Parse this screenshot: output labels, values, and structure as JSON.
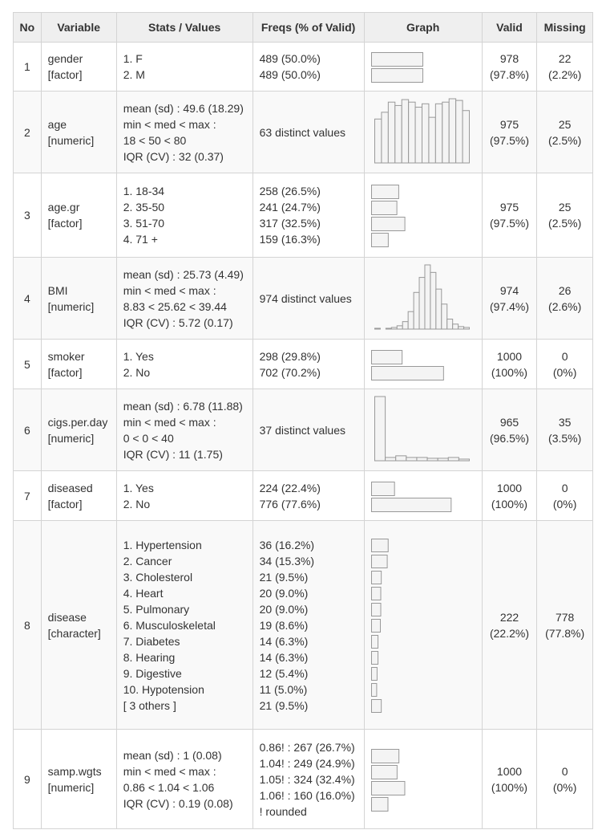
{
  "headers": [
    "No",
    "Variable",
    "Stats / Values",
    "Freqs (% of Valid)",
    "Graph",
    "Valid",
    "Missing"
  ],
  "rows": [
    {
      "no": "1",
      "var": [
        "gender",
        "[factor]"
      ],
      "stats": [
        "1. F",
        "2. M"
      ],
      "freqs": [
        "489 (50.0%)",
        "489 (50.0%)"
      ],
      "valid": [
        "978",
        "(97.8%)"
      ],
      "missing": [
        "22",
        "(2.2%)"
      ],
      "graph": {
        "type": "bars",
        "values": [
          50.0,
          50.0
        ]
      }
    },
    {
      "no": "2",
      "var": [
        "age",
        "[numeric]"
      ],
      "stats": [
        "mean (sd) : 49.6 (18.29)",
        "min < med < max :",
        "18 < 50 < 80",
        "IQR (CV) : 32 (0.37)"
      ],
      "freqs": [
        "63 distinct values"
      ],
      "valid": [
        "975",
        "(97.5%)"
      ],
      "missing": [
        "25",
        "(2.5%)"
      ],
      "graph": {
        "type": "histogram",
        "values": [
          52,
          60,
          72,
          68,
          75,
          72,
          66,
          70,
          54,
          70,
          72,
          76,
          74,
          62
        ]
      }
    },
    {
      "no": "3",
      "var": [
        "age.gr",
        "[factor]"
      ],
      "stats": [
        "1. 18-34",
        "2. 35-50",
        "3. 51-70",
        "4. 71 +"
      ],
      "freqs": [
        "258 (26.5%)",
        "241 (24.7%)",
        "317 (32.5%)",
        "159 (16.3%)"
      ],
      "valid": [
        "975",
        "(97.5%)"
      ],
      "missing": [
        "25",
        "(2.5%)"
      ],
      "graph": {
        "type": "bars",
        "values": [
          26.5,
          24.7,
          32.5,
          16.3
        ]
      }
    },
    {
      "no": "4",
      "var": [
        "BMI",
        "[numeric]"
      ],
      "stats": [
        "mean (sd) : 25.73 (4.49)",
        "min < med < max :",
        "8.83 < 25.62 < 39.44",
        "IQR (CV) : 5.72 (0.17)"
      ],
      "freqs": [
        "974 distinct values"
      ],
      "valid": [
        "974",
        "(97.4%)"
      ],
      "missing": [
        "26",
        "(2.6%)"
      ],
      "graph": {
        "type": "histogram",
        "values": [
          1,
          0,
          1,
          2,
          4,
          9,
          21,
          44,
          62,
          77,
          68,
          48,
          30,
          12,
          6,
          3,
          2
        ]
      }
    },
    {
      "no": "5",
      "var": [
        "smoker",
        "[factor]"
      ],
      "stats": [
        "1. Yes",
        "2. No"
      ],
      "freqs": [
        "298 (29.8%)",
        "702 (70.2%)"
      ],
      "valid": [
        "1000",
        "(100%)"
      ],
      "missing": [
        "0",
        "(0%)"
      ],
      "graph": {
        "type": "bars",
        "values": [
          29.8,
          70.2
        ]
      }
    },
    {
      "no": "6",
      "var": [
        "cigs.per.day",
        "[numeric]"
      ],
      "stats": [
        "mean (sd) : 6.78 (11.88)",
        "min < med < max :",
        "0 < 0 < 40",
        "IQR (CV) : 11 (1.75)"
      ],
      "freqs": [
        "37 distinct values"
      ],
      "valid": [
        "965",
        "(96.5%)"
      ],
      "missing": [
        "35",
        "(3.5%)"
      ],
      "graph": {
        "type": "histogram",
        "values": [
          78,
          4,
          6,
          4,
          4,
          3,
          3,
          4,
          2
        ]
      }
    },
    {
      "no": "7",
      "var": [
        "diseased",
        "[factor]"
      ],
      "stats": [
        "1. Yes",
        "2. No"
      ],
      "freqs": [
        "224 (22.4%)",
        "776 (77.6%)"
      ],
      "valid": [
        "1000",
        "(100%)"
      ],
      "missing": [
        "0",
        "(0%)"
      ],
      "graph": {
        "type": "bars",
        "values": [
          22.4,
          77.6
        ]
      }
    },
    {
      "no": "8",
      "var": [
        "disease",
        "[character]"
      ],
      "stats": [
        "1. Hypertension",
        "2. Cancer",
        "3. Cholesterol",
        "4. Heart",
        "5. Pulmonary",
        "6. Musculoskeletal",
        "7. Diabetes",
        "8. Hearing",
        "9. Digestive",
        "10. Hypotension",
        "[ 3 others ]"
      ],
      "freqs": [
        "36 (16.2%)",
        "34 (15.3%)",
        "21 (9.5%)",
        "20 (9.0%)",
        "20 (9.0%)",
        "19 (8.6%)",
        "14 (6.3%)",
        "14 (6.3%)",
        "12 (5.4%)",
        "11 (5.0%)",
        "21 (9.5%)"
      ],
      "valid": [
        "222",
        "(22.2%)"
      ],
      "missing": [
        "778",
        "(77.8%)"
      ],
      "graph": {
        "type": "bars",
        "values": [
          16.2,
          15.3,
          9.5,
          9.0,
          9.0,
          8.6,
          6.3,
          6.3,
          5.4,
          5.0,
          9.5
        ]
      }
    },
    {
      "no": "9",
      "var": [
        "samp.wgts",
        "[numeric]"
      ],
      "stats": [
        "mean (sd) : 1 (0.08)",
        "min < med < max :",
        "0.86 < 1.04 < 1.06",
        "IQR (CV) : 0.19 (0.08)"
      ],
      "freqs": [
        "0.86! : 267 (26.7%)",
        "1.04! : 249 (24.9%)",
        "1.05! : 324 (32.4%)",
        "1.06! : 160 (16.0%)",
        "! rounded"
      ],
      "valid": [
        "1000",
        "(100%)"
      ],
      "missing": [
        "0",
        "(0%)"
      ],
      "graph": {
        "type": "bars",
        "values": [
          26.7,
          24.9,
          32.4,
          16.0
        ]
      }
    }
  ]
}
